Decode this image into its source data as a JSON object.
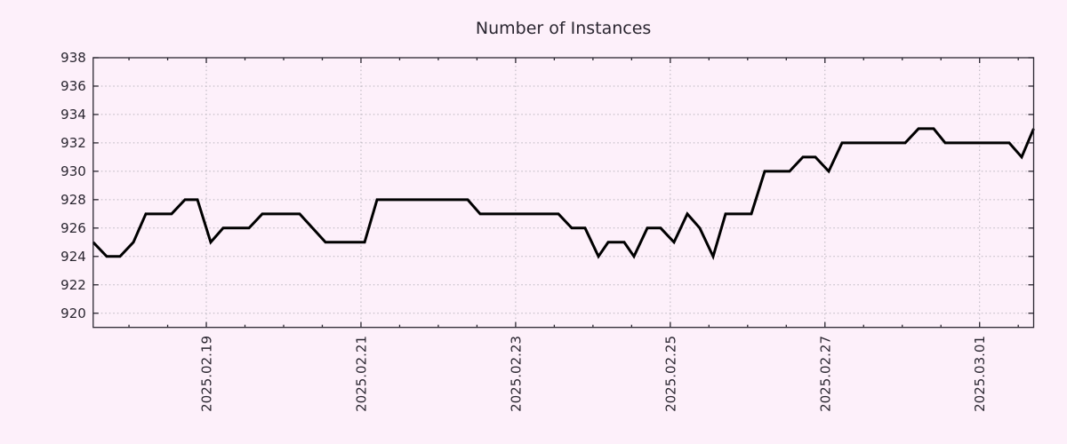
{
  "page": {
    "background": "#fdf0fa"
  },
  "chart_data": {
    "type": "line",
    "title": "Number of Instances",
    "xlabel": "",
    "ylabel": "",
    "grid": true,
    "legend": false,
    "ylim": [
      919,
      938
    ],
    "y_ticks": [
      920,
      922,
      924,
      926,
      928,
      930,
      932,
      934,
      936,
      938
    ],
    "xlim_days": [
      0,
      12.162
    ],
    "x_major_ticks": [
      {
        "label": "2025.02.19",
        "day": 1.463
      },
      {
        "label": "2025.02.21",
        "day": 3.463
      },
      {
        "label": "2025.02.23",
        "day": 5.463
      },
      {
        "label": "2025.02.25",
        "day": 7.463
      },
      {
        "label": "2025.02.27",
        "day": 9.463
      },
      {
        "label": "2025.03.01",
        "day": 11.463
      }
    ],
    "x_minor_ticks_every_days": 0.5,
    "x_minor_ticks_offset_days": 0.463,
    "x_tick_label_rotation_deg": -90,
    "colors": {
      "line": "#000000",
      "grid": "#b8b3bc",
      "axis": "#2a2630",
      "text": "#2a2630",
      "background": "#fdf0fa"
    },
    "series": [
      {
        "name": "instances",
        "points": [
          [
            0.0,
            925
          ],
          [
            0.175,
            924
          ],
          [
            0.347,
            924
          ],
          [
            0.52,
            925
          ],
          [
            0.681,
            927
          ],
          [
            1.014,
            927
          ],
          [
            1.187,
            928
          ],
          [
            1.348,
            928
          ],
          [
            1.52,
            925
          ],
          [
            1.681,
            926
          ],
          [
            2.015,
            926
          ],
          [
            2.187,
            927
          ],
          [
            2.67,
            927
          ],
          [
            3.004,
            925
          ],
          [
            3.51,
            925
          ],
          [
            3.671,
            928
          ],
          [
            4.843,
            928
          ],
          [
            5.004,
            927
          ],
          [
            6.016,
            927
          ],
          [
            6.189,
            926
          ],
          [
            6.361,
            926
          ],
          [
            6.534,
            924
          ],
          [
            6.66,
            925
          ],
          [
            6.867,
            925
          ],
          [
            6.993,
            924
          ],
          [
            7.166,
            926
          ],
          [
            7.338,
            926
          ],
          [
            7.511,
            925
          ],
          [
            7.683,
            927
          ],
          [
            7.844,
            926
          ],
          [
            8.017,
            924
          ],
          [
            8.178,
            927
          ],
          [
            8.511,
            927
          ],
          [
            8.684,
            930
          ],
          [
            9.006,
            930
          ],
          [
            9.178,
            931
          ],
          [
            9.339,
            931
          ],
          [
            9.512,
            930
          ],
          [
            9.684,
            932
          ],
          [
            10.501,
            932
          ],
          [
            10.673,
            933
          ],
          [
            10.869,
            933
          ],
          [
            11.018,
            932
          ],
          [
            11.846,
            932
          ],
          [
            12.007,
            931
          ],
          [
            12.162,
            933
          ]
        ]
      }
    ]
  }
}
